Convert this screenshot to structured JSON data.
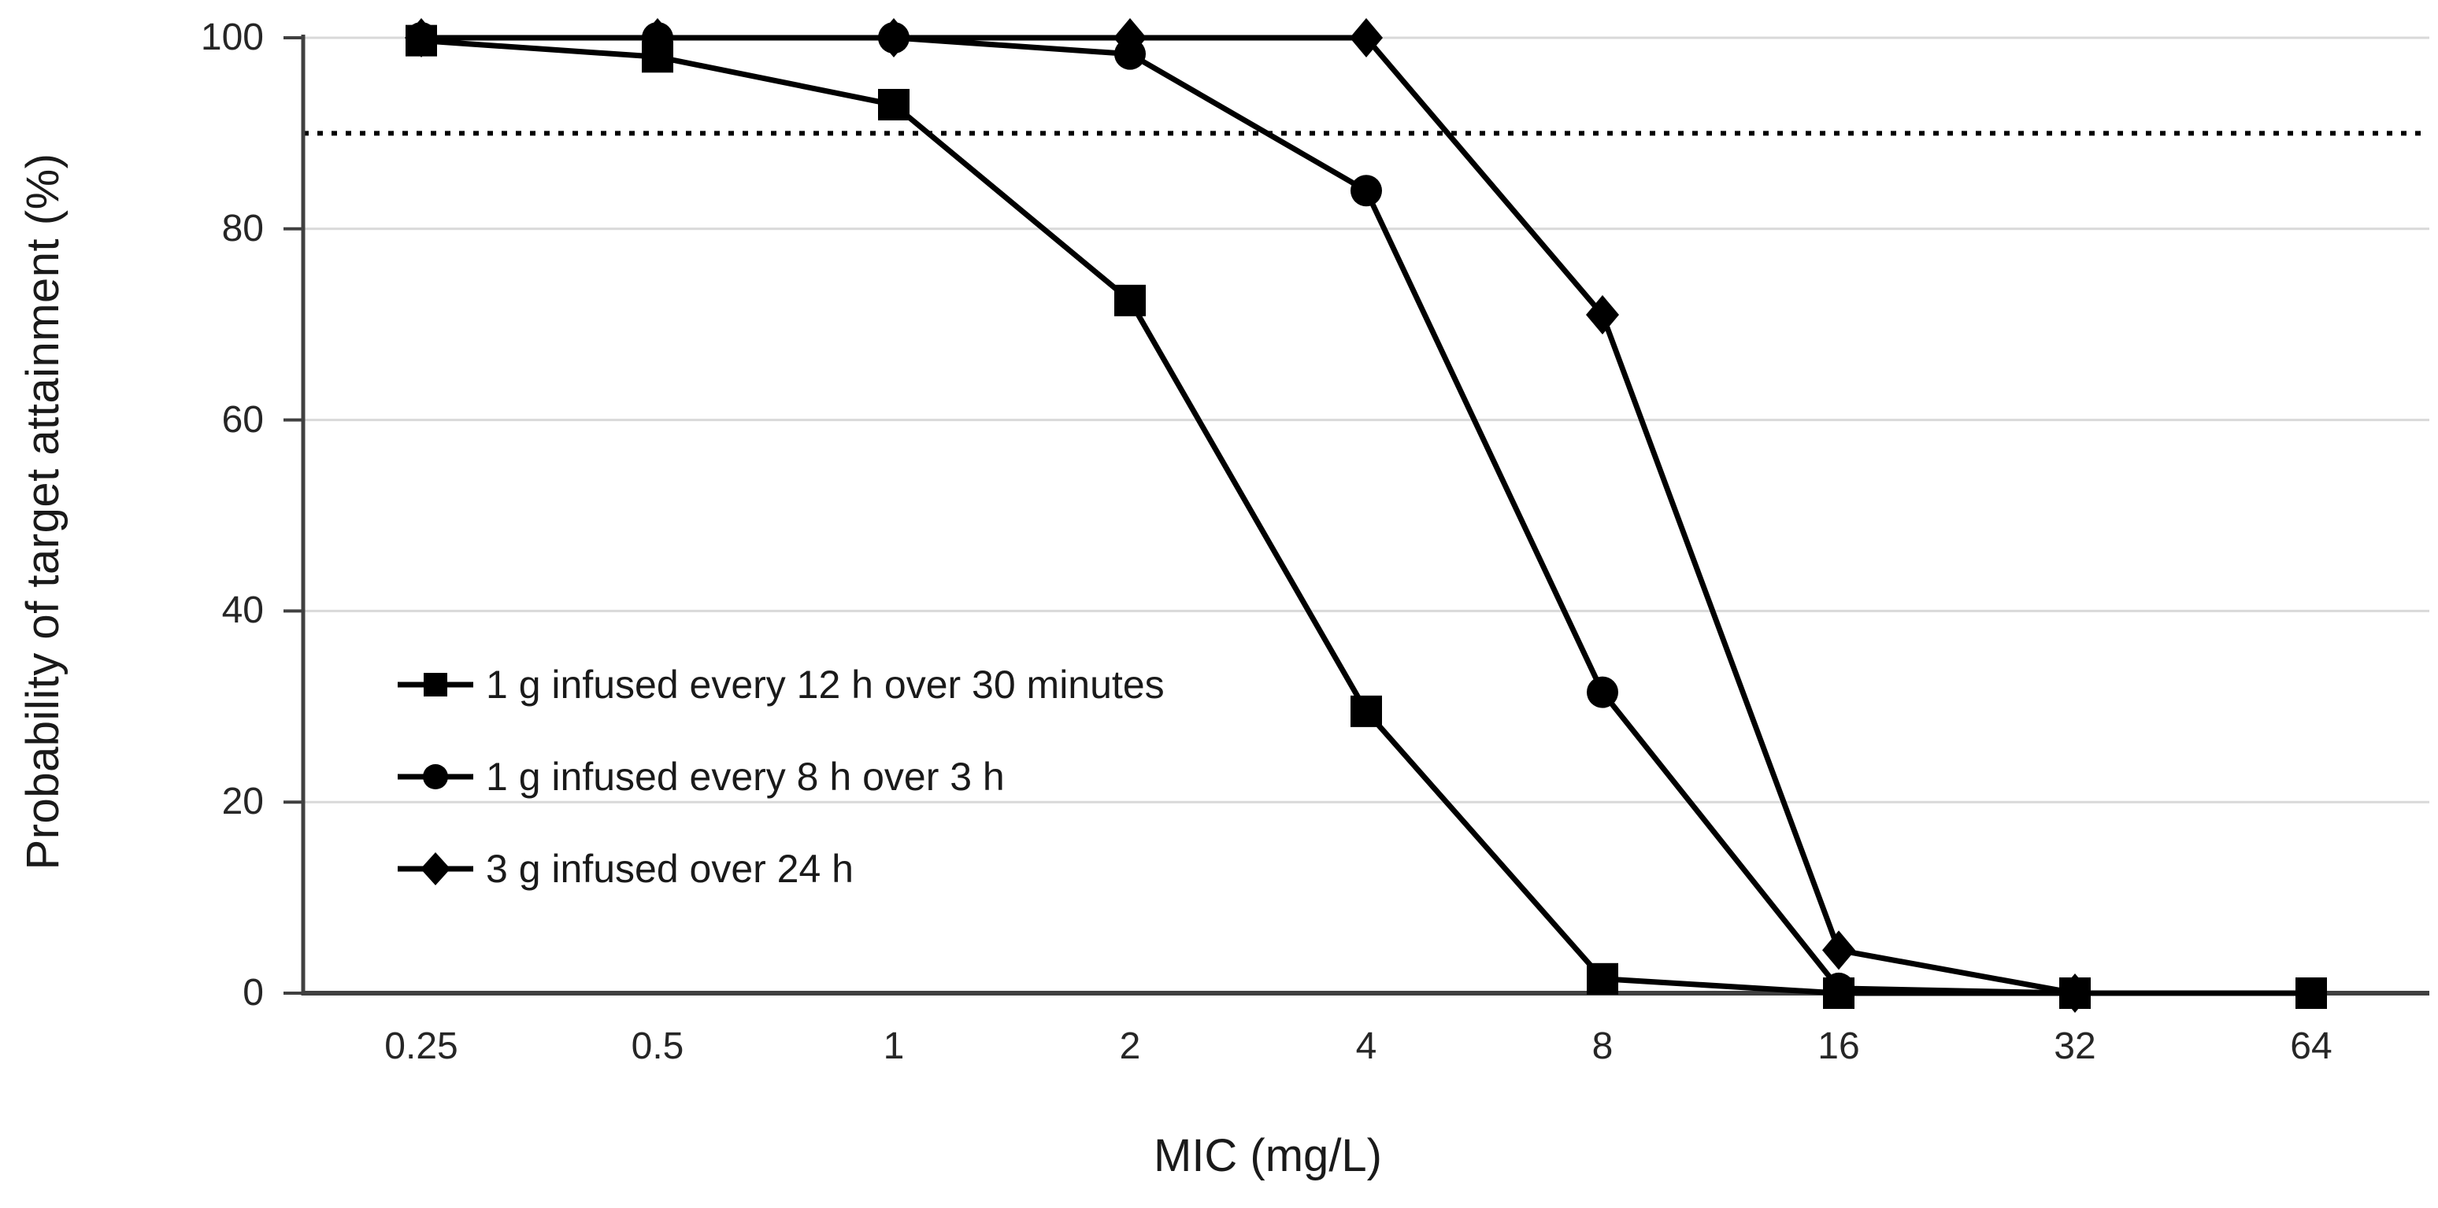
{
  "chart_data": {
    "type": "line",
    "title": "",
    "xlabel": "MIC (mg/L)",
    "ylabel": "Probability of target attainment (%)",
    "ylim": [
      0,
      100
    ],
    "y_ticks": [
      0,
      20,
      40,
      60,
      80,
      100
    ],
    "grid": "horizontal gridlines at each y tick, light gray",
    "reference_line": {
      "value": 90,
      "style": "dotted",
      "color": "#000000"
    },
    "categories": [
      "0.25",
      "0.5",
      "1",
      "2",
      "4",
      "8",
      "16",
      "32",
      "64"
    ],
    "series": [
      {
        "name": "1 g infused every 12 h over 30 minutes",
        "marker": "square",
        "color": "#000000",
        "values": [
          99.7,
          98,
          93,
          72.5,
          29.5,
          1.5,
          0,
          0,
          0
        ]
      },
      {
        "name": "1 g infused every 8 h over 3 h",
        "marker": "circle",
        "color": "#000000",
        "values": [
          100,
          100,
          100,
          98.3,
          84,
          31.5,
          0.5,
          0,
          null
        ]
      },
      {
        "name": "3 g infused over 24 h",
        "marker": "diamond",
        "color": "#000000",
        "values": [
          100,
          100,
          100,
          100,
          100,
          71,
          4.5,
          0,
          null
        ]
      }
    ],
    "legend_position": "inside plot, lower left",
    "colors": {
      "series": "#000000",
      "gridline": "#d9d9d9",
      "axis": "#404040",
      "text": "#262626",
      "background": "#ffffff"
    }
  }
}
